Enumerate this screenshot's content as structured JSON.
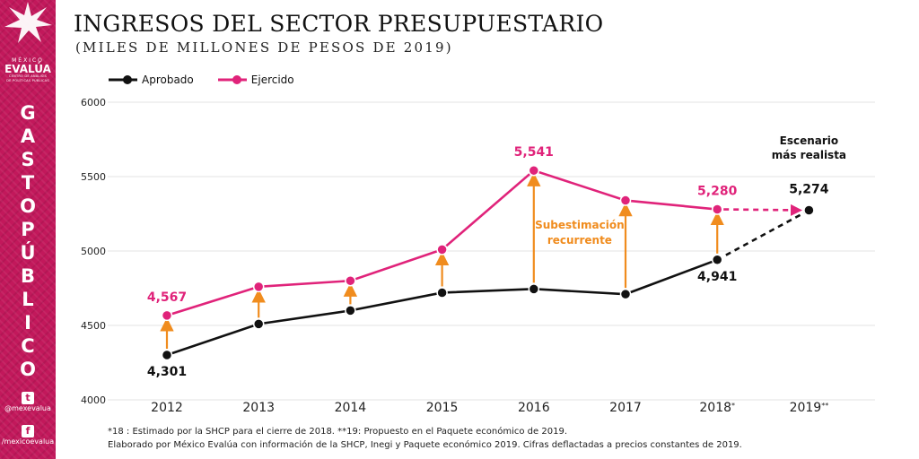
{
  "header": {
    "title": "INGRESOS DEL SECTOR PRESUPUESTARIO",
    "subtitle": "(MILES DE MILLONES DE PESOS DE 2019)"
  },
  "sidebar": {
    "brand_top": "MÉXICO",
    "brand_main": "EVALÚA",
    "brand_sub1": "CENTRO DE ANÁLISIS",
    "brand_sub2": "DE POLÍTICAS PÚBLICAS",
    "vertical_word_1": [
      "G",
      "A",
      "S",
      "T",
      "O"
    ],
    "vertical_word_2": [
      "P",
      "Ú",
      "B",
      "L",
      "I",
      "C",
      "O"
    ],
    "twitter_handle": "@mexevalua",
    "facebook_handle": "/mexicoevalua"
  },
  "colors": {
    "aprobado": "#111111",
    "ejercido": "#e0237a",
    "arrow": "#f08c1e",
    "grid": "#e3e3e3",
    "sidebar": "#c2185b"
  },
  "chart_data": {
    "type": "line",
    "categories": [
      "2012",
      "2013",
      "2014",
      "2015",
      "2016",
      "2017",
      "2018*",
      "2019**"
    ],
    "ylim": [
      4000,
      6000
    ],
    "yticks": [
      4000,
      4500,
      5000,
      5500,
      6000
    ],
    "grid": true,
    "legend_position": "top-left",
    "series": [
      {
        "name": "Aprobado",
        "values": [
          4301,
          4510,
          4600,
          4720,
          4745,
          4710,
          4941,
          5274
        ]
      },
      {
        "name": "Ejercido",
        "values": [
          4567,
          4760,
          4800,
          5010,
          5541,
          5340,
          5280,
          5274
        ]
      }
    ],
    "data_labels": {
      "aprobado": [
        {
          "index": 0,
          "text": "4,301"
        },
        {
          "index": 6,
          "text": "4,941"
        },
        {
          "index": 7,
          "text": "5,274"
        }
      ],
      "ejercido": [
        {
          "index": 0,
          "text": "4,567"
        },
        {
          "index": 4,
          "text": "5,541"
        },
        {
          "index": 6,
          "text": "5,280"
        }
      ]
    },
    "annotations": {
      "gap_label_line1": "Subestimación",
      "gap_label_line2": "recurrente",
      "scenario_line1": "Escenario",
      "scenario_line2": "más realista"
    }
  },
  "notes": {
    "line1": "*18 : Estimado por la SHCP para el cierre de 2018. **19: Propuesto en el Paquete económico de 2019.",
    "line2": "Elaborado por México Evalúa con información de la SHCP, Inegi y Paquete económico 2019. Cifras deflactadas a precios constantes de 2019."
  }
}
